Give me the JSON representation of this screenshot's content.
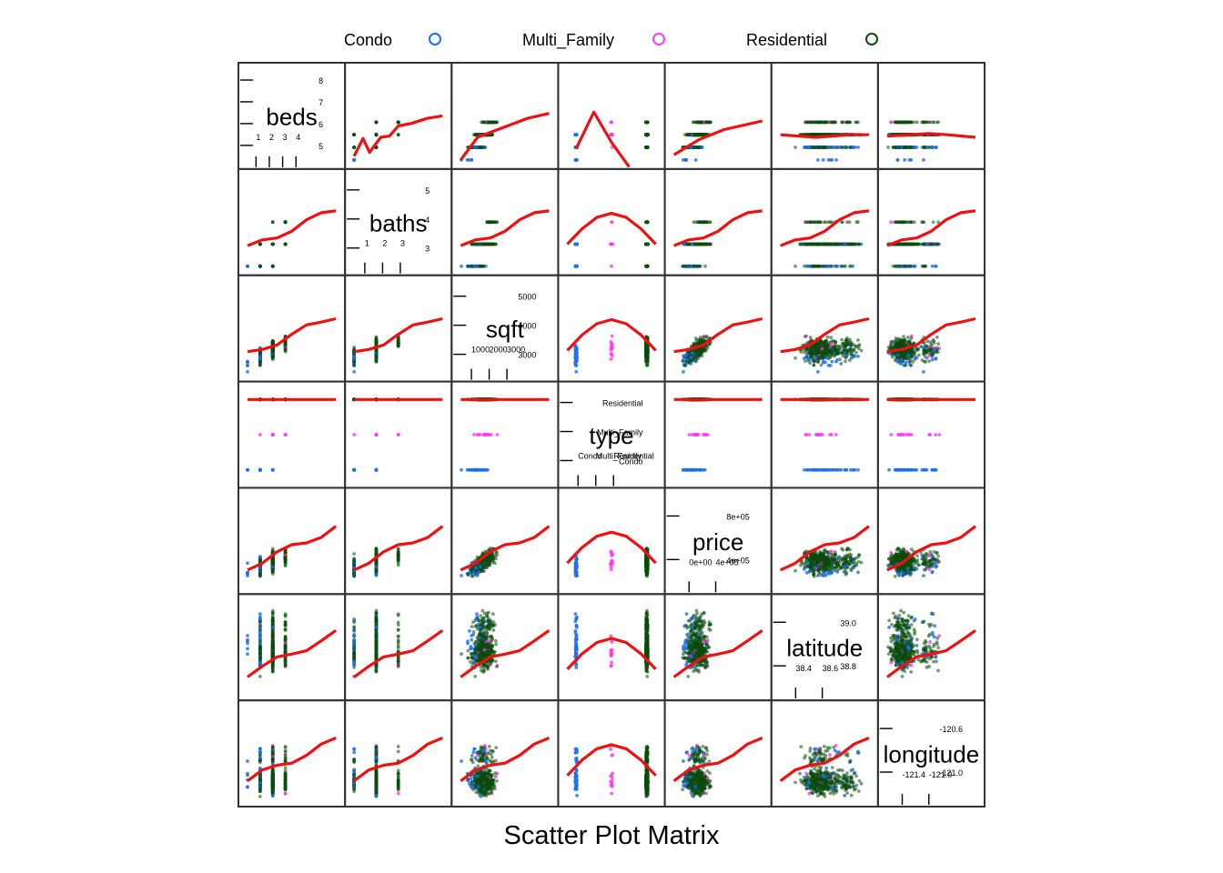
{
  "chart_data": {
    "type": "scatter",
    "subtype": "scatterplot-matrix",
    "title": "Scatter Plot Matrix",
    "legend": {
      "placement": "top",
      "entries": [
        {
          "label": "Condo",
          "color": "#1e6ef0"
        },
        {
          "label": "Multi_Family",
          "color": "#ff3bf3"
        },
        {
          "label": "Residential",
          "color": "#0a4d0a"
        }
      ]
    },
    "smoother_color": "#ee1111",
    "variables": [
      {
        "name": "beds",
        "kind": "numeric",
        "range": [
          1,
          8
        ],
        "ticks_low": [
          "1",
          "2",
          "3",
          "4"
        ],
        "ticks_high": [
          "5",
          "6",
          "7",
          "8"
        ]
      },
      {
        "name": "baths",
        "kind": "numeric",
        "range": [
          1,
          5
        ],
        "ticks_low": [
          "1",
          "2",
          "3"
        ],
        "ticks_high": [
          "3",
          "4",
          "5"
        ]
      },
      {
        "name": "sqft",
        "kind": "numeric",
        "range": [
          484,
          5822
        ],
        "ticks_low": [
          "1000",
          "2000",
          "3000"
        ],
        "ticks_high": [
          "3000",
          "4000",
          "5000"
        ]
      },
      {
        "name": "type",
        "kind": "factor",
        "levels": [
          "Condo",
          "Multi_Family",
          "Residential"
        ]
      },
      {
        "name": "price",
        "kind": "numeric",
        "range": [
          1551,
          884790
        ],
        "ticks_low": [
          "0e+00",
          "4e+05"
        ],
        "ticks_high": [
          "4e+05",
          "8e+05"
        ]
      },
      {
        "name": "latitude",
        "kind": "numeric",
        "range": [
          38.24,
          39.02
        ],
        "ticks_low": [
          "38.4",
          "38.6"
        ],
        "ticks_high": [
          "38.8",
          "39.0"
        ]
      },
      {
        "name": "longitude",
        "kind": "numeric",
        "range": [
          -121.55,
          -120.6
        ],
        "ticks_low": [
          "-121.4",
          "-121.0"
        ],
        "ticks_high": [
          "-121.0",
          "-120.6"
        ]
      }
    ],
    "smoothers": [
      {
        "y": "beds",
        "x": "baths",
        "points": [
          [
            1,
            1.3
          ],
          [
            1.4,
            2.7
          ],
          [
            1.7,
            1.6
          ],
          [
            2.2,
            2.8
          ],
          [
            2.6,
            2.9
          ],
          [
            3,
            3.7
          ],
          [
            3.6,
            3.9
          ],
          [
            4.3,
            4.3
          ],
          [
            5,
            4.5
          ]
        ]
      },
      {
        "y": "beds",
        "x": "sqft",
        "points": [
          [
            484,
            1
          ],
          [
            1500,
            2.8
          ],
          [
            2500,
            3.3
          ],
          [
            3500,
            3.8
          ],
          [
            4500,
            4.3
          ],
          [
            5822,
            4.7
          ]
        ]
      },
      {
        "y": "beds",
        "x": "type",
        "points": [
          [
            0,
            1.9
          ],
          [
            0.5,
            4.8
          ],
          [
            1,
            2.4
          ],
          [
            1.5,
            0.4
          ]
        ]
      },
      {
        "y": "beds",
        "x": "price",
        "points": [
          [
            1551,
            1.4
          ],
          [
            250000,
            2.6
          ],
          [
            500000,
            3.4
          ],
          [
            884790,
            4.1
          ]
        ]
      },
      {
        "y": "beds",
        "x": "latitude",
        "points": [
          [
            38.24,
            3.0
          ],
          [
            38.4,
            2.9
          ],
          [
            38.55,
            2.8
          ],
          [
            38.7,
            2.9
          ],
          [
            38.85,
            3.0
          ],
          [
            39.02,
            3.0
          ]
        ]
      },
      {
        "y": "beds",
        "x": "longitude",
        "points": [
          [
            -121.55,
            2.9
          ],
          [
            -121.3,
            3.0
          ],
          [
            -121.1,
            3.1
          ],
          [
            -120.9,
            3.0
          ],
          [
            -120.6,
            2.8
          ]
        ]
      }
    ]
  }
}
